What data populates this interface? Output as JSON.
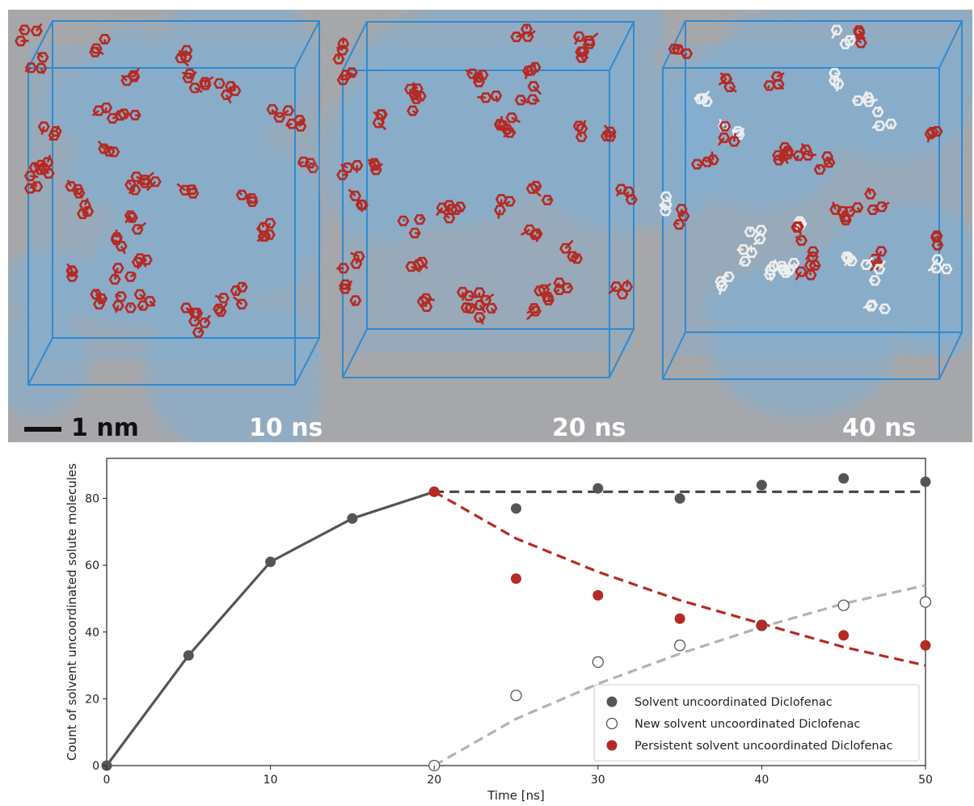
{
  "simulation": {
    "scale_bar_label": "1 nm",
    "frames": [
      {
        "label": "10 ns"
      },
      {
        "label": "20 ns"
      },
      {
        "label": "40 ns"
      }
    ],
    "colors": {
      "background": "#a6a7aa",
      "water_surface": "#7fb0d6",
      "box_edges": "#2f8bd0",
      "persistent_molecules": "#b52a22",
      "new_molecules": "#eeeeee"
    }
  },
  "chart_data": {
    "type": "scatter",
    "xlabel": "Time [ns]",
    "ylabel": "Count of solvent uncoordinated solute molecules",
    "xlim": [
      0,
      50
    ],
    "ylim": [
      0,
      92
    ],
    "xticks": [
      0,
      10,
      20,
      30,
      40,
      50
    ],
    "yticks": [
      0,
      20,
      40,
      60,
      80
    ],
    "grid": false,
    "legend_position": "bottom-right",
    "series": [
      {
        "name": "Solvent uncoordinated Diclofenac",
        "color": "#555555",
        "marker": "filled",
        "x": [
          0,
          5,
          10,
          15,
          20,
          25,
          30,
          35,
          40,
          45,
          50
        ],
        "y": [
          0,
          33,
          61,
          74,
          82,
          77,
          83,
          80,
          84,
          86,
          85
        ]
      },
      {
        "name": "New solvent uncoordinated Diclofenac",
        "color": "#555555",
        "marker": "open",
        "x": [
          20,
          25,
          30,
          35,
          40,
          45,
          50
        ],
        "y": [
          0,
          21,
          31,
          36,
          42,
          48,
          49
        ]
      },
      {
        "name": "Persistent solvent uncoordinated Diclofenac",
        "color": "#b52a22",
        "marker": "filled",
        "x": [
          20,
          25,
          30,
          35,
          40,
          45,
          50
        ],
        "y": [
          82,
          56,
          51,
          44,
          42,
          39,
          36
        ]
      }
    ],
    "lines": [
      {
        "style": "solid",
        "color": "#555555",
        "x": [
          0,
          5,
          10,
          15,
          20
        ],
        "y": [
          0,
          33,
          61,
          74,
          82
        ]
      },
      {
        "style": "dashed",
        "color": "#444444",
        "x": [
          20,
          50
        ],
        "y": [
          82,
          82
        ]
      },
      {
        "style": "dashed",
        "color": "#b52a22",
        "x": [
          20,
          25,
          30,
          35,
          40,
          45,
          50
        ],
        "y": [
          82,
          68,
          58,
          49.5,
          42.5,
          35.5,
          30
        ]
      },
      {
        "style": "dashed",
        "color": "#b3b3b3",
        "x": [
          20,
          25,
          30,
          35,
          40,
          45,
          50
        ],
        "y": [
          0,
          14,
          24.5,
          33.5,
          41.5,
          48.5,
          54
        ]
      }
    ]
  }
}
